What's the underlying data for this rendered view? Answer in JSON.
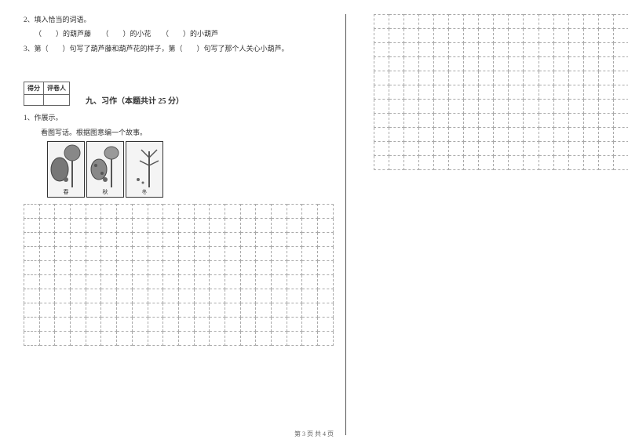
{
  "left": {
    "q2": "2、填入恰当的词语。",
    "q2_blanks": "（　　）的葫芦藤　　（　　）的小花　　（　　）的小葫芦",
    "q3": "3、第（　　）句写了葫芦藤和葫芦花的样子，第（　　）句写了那个人关心小葫芦。",
    "score_header1": "得分",
    "score_header2": "评卷人",
    "section_title": "九、习作（本题共计 25 分）",
    "writing_q": "1、作展示。",
    "writing_prompt": "看图写话。根据图意编一个故事。",
    "panel1_caption": "春",
    "panel2_caption": "秋",
    "panel3_caption": "冬"
  },
  "grids": {
    "left_cols": 20,
    "left_rows": 10,
    "right_cols": 17,
    "right_rows": 11
  },
  "footer": "第 3 页 共 4 页",
  "colors": {
    "text": "#333333",
    "grid_border": "#aaaaaa",
    "panel_bg": "#f4f4f4",
    "svg_stroke": "#555555",
    "svg_fill": "#888888"
  }
}
